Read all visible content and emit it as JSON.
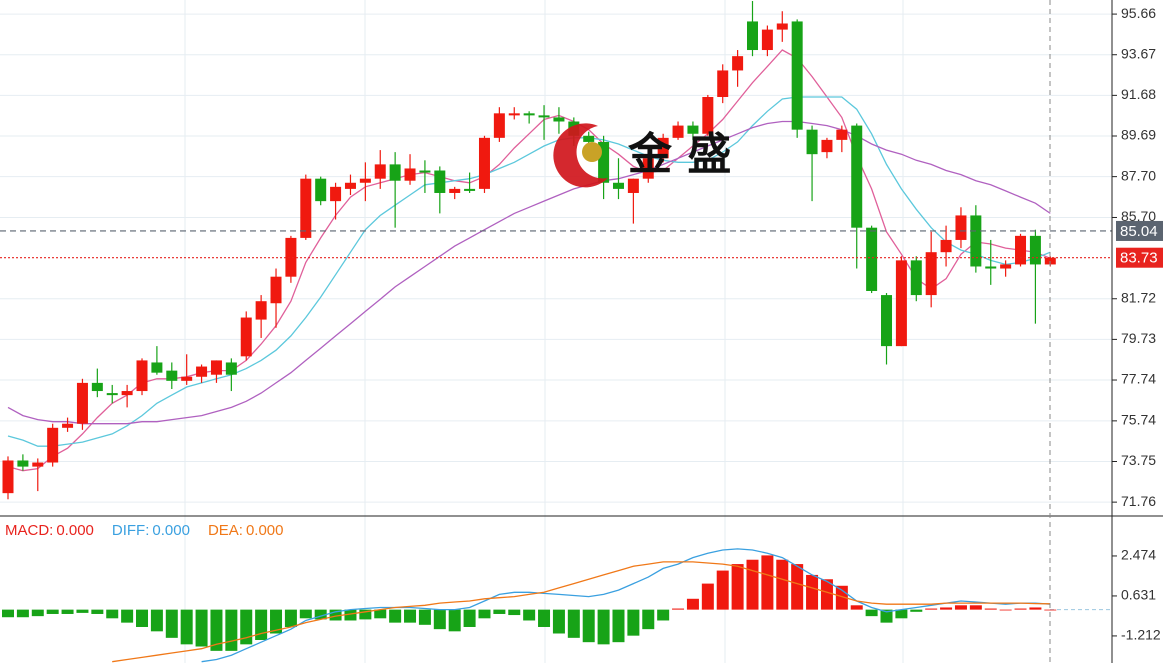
{
  "watermark": "金 盛",
  "chart_data": [
    {
      "type": "candlestick",
      "ylim": [
        71.13,
        96.35
      ],
      "yticks": [
        95.66,
        93.67,
        91.68,
        89.69,
        {
          "value": 87.7,
          "label": "87.70"
        },
        {
          "value": 85.7,
          "label": "85.70"
        },
        81.72,
        79.73,
        77.74,
        75.74,
        73.75,
        71.76
      ],
      "grid": true,
      "up_color": "#f0190f",
      "down_color": "#17a317",
      "ohlc": [
        [
          72.2,
          74.0,
          71.9,
          73.8
        ],
        [
          73.8,
          74.1,
          73.3,
          73.5
        ],
        [
          73.5,
          73.9,
          72.3,
          73.7
        ],
        [
          73.7,
          75.6,
          73.5,
          75.4
        ],
        [
          75.4,
          75.9,
          75.2,
          75.6
        ],
        [
          75.6,
          77.8,
          75.3,
          77.6
        ],
        [
          77.6,
          78.3,
          76.9,
          77.2
        ],
        [
          77.1,
          77.5,
          76.6,
          77.0
        ],
        [
          77.0,
          77.5,
          76.4,
          77.2
        ],
        [
          77.2,
          78.8,
          77.0,
          78.7
        ],
        [
          78.6,
          79.4,
          78.0,
          78.1
        ],
        [
          78.2,
          78.6,
          77.3,
          77.7
        ],
        [
          77.7,
          79.0,
          77.5,
          77.9
        ],
        [
          77.9,
          78.5,
          77.6,
          78.4
        ],
        [
          78.0,
          78.7,
          77.6,
          78.7
        ],
        [
          78.6,
          78.8,
          77.2,
          78.0
        ],
        [
          78.9,
          81.1,
          78.7,
          80.8
        ],
        [
          80.7,
          81.9,
          79.8,
          81.6
        ],
        [
          81.5,
          83.2,
          80.3,
          82.8
        ],
        [
          82.8,
          84.8,
          82.5,
          84.7
        ],
        [
          84.7,
          87.8,
          84.6,
          87.6
        ],
        [
          87.6,
          87.7,
          86.3,
          86.5
        ],
        [
          86.5,
          87.4,
          85.6,
          87.2
        ],
        [
          87.1,
          87.8,
          86.8,
          87.4
        ],
        [
          87.4,
          88.4,
          86.5,
          87.6
        ],
        [
          87.6,
          89.0,
          87.1,
          88.3
        ],
        [
          88.3,
          88.9,
          85.2,
          87.5
        ],
        [
          87.5,
          88.8,
          87.3,
          88.1
        ],
        [
          88.0,
          88.5,
          86.9,
          87.9
        ],
        [
          88.0,
          88.2,
          85.9,
          86.9
        ],
        [
          86.9,
          87.2,
          86.6,
          87.1
        ],
        [
          87.1,
          87.9,
          86.9,
          87.0
        ],
        [
          87.1,
          89.7,
          86.9,
          89.6
        ],
        [
          89.6,
          91.1,
          89.4,
          90.8
        ],
        [
          90.7,
          91.1,
          90.5,
          90.8
        ],
        [
          90.8,
          90.9,
          90.3,
          90.7
        ],
        [
          90.7,
          91.2,
          89.5,
          90.6
        ],
        [
          90.6,
          91.1,
          89.8,
          90.4
        ],
        [
          90.4,
          90.6,
          89.2,
          89.7
        ],
        [
          89.7,
          89.9,
          88.8,
          89.4
        ],
        [
          89.4,
          89.7,
          86.6,
          87.4
        ],
        [
          87.4,
          88.6,
          86.6,
          87.1
        ],
        [
          86.9,
          87.6,
          85.4,
          87.6
        ],
        [
          87.6,
          88.9,
          87.4,
          88.6
        ],
        [
          88.6,
          89.8,
          88.4,
          89.6
        ],
        [
          89.6,
          90.4,
          89.5,
          90.2
        ],
        [
          90.2,
          90.4,
          89.5,
          89.8
        ],
        [
          89.8,
          91.7,
          89.7,
          91.6
        ],
        [
          91.6,
          93.2,
          91.3,
          92.9
        ],
        [
          92.9,
          93.9,
          92.1,
          93.6
        ],
        [
          95.3,
          96.3,
          93.6,
          93.9
        ],
        [
          93.9,
          95.1,
          93.6,
          94.9
        ],
        [
          94.9,
          95.8,
          94.3,
          95.2
        ],
        [
          95.3,
          95.4,
          89.6,
          90.0
        ],
        [
          90.0,
          90.2,
          86.5,
          88.8
        ],
        [
          88.9,
          89.6,
          88.6,
          89.5
        ],
        [
          89.5,
          90.2,
          88.9,
          90.0
        ],
        [
          90.2,
          90.3,
          83.2,
          85.2
        ],
        [
          85.2,
          85.3,
          82.0,
          82.1
        ],
        [
          81.9,
          82.0,
          78.5,
          79.4
        ],
        [
          79.4,
          83.8,
          79.4,
          83.6
        ],
        [
          83.6,
          83.8,
          81.6,
          81.9
        ],
        [
          81.9,
          85.0,
          81.3,
          84.0
        ],
        [
          84.0,
          85.3,
          83.3,
          84.6
        ],
        [
          84.6,
          86.2,
          84.2,
          85.8
        ],
        [
          85.8,
          86.3,
          83.0,
          83.3
        ],
        [
          83.3,
          84.6,
          82.4,
          83.2
        ],
        [
          83.2,
          83.6,
          82.8,
          83.4
        ],
        [
          83.4,
          84.9,
          83.3,
          84.8
        ],
        [
          84.8,
          85.1,
          80.5,
          83.4
        ],
        [
          83.4,
          83.8,
          83.3,
          83.73
        ]
      ],
      "series": [
        {
          "color": "#e0609a",
          "values": [
            73.5,
            73.3,
            73.4,
            74.0,
            74.4,
            75.1,
            75.9,
            76.6,
            77.0,
            77.6,
            77.8,
            77.8,
            77.9,
            78.1,
            78.2,
            78.2,
            78.7,
            79.5,
            80.4,
            81.6,
            83.5,
            84.7,
            85.8,
            86.7,
            87.2,
            87.4,
            87.6,
            87.8,
            87.9,
            87.7,
            87.5,
            87.4,
            87.7,
            88.3,
            89.1,
            89.8,
            90.5,
            90.7,
            90.4,
            90.0,
            89.3,
            88.8,
            88.2,
            87.9,
            88.0,
            88.6,
            89.2,
            89.8,
            90.5,
            91.4,
            92.3,
            93.1,
            93.9,
            93.5,
            92.6,
            91.6,
            90.6,
            88.7,
            87.1,
            85.0,
            83.9,
            82.7,
            82.2,
            82.7,
            83.9,
            84.5,
            84.4,
            84.2,
            84.1,
            84.0,
            83.7
          ]
        },
        {
          "color": "#5cc8dc",
          "values": [
            75.0,
            74.8,
            74.5,
            74.5,
            74.6,
            74.7,
            74.9,
            75.1,
            75.5,
            76.0,
            76.6,
            77.0,
            77.4,
            77.6,
            77.8,
            78.0,
            78.3,
            78.7,
            79.2,
            79.9,
            80.8,
            81.8,
            82.9,
            84.0,
            85.1,
            85.8,
            86.3,
            86.8,
            87.3,
            87.4,
            87.5,
            87.6,
            87.8,
            88.1,
            88.4,
            88.8,
            89.2,
            89.5,
            89.6,
            89.6,
            89.5,
            89.3,
            89.0,
            88.7,
            88.5,
            88.4,
            88.4,
            88.5,
            88.9,
            89.4,
            90.2,
            90.9,
            91.5,
            91.6,
            91.6,
            91.6,
            91.6,
            91.0,
            89.8,
            88.3,
            87.1,
            86.1,
            85.2,
            84.5,
            84.1,
            83.9,
            83.6,
            83.4,
            83.5,
            83.7,
            84.0
          ]
        },
        {
          "color": "#b061c0",
          "values": [
            76.4,
            76.0,
            75.8,
            75.7,
            75.7,
            75.6,
            75.6,
            75.6,
            75.6,
            75.7,
            75.7,
            75.8,
            75.9,
            76.0,
            76.2,
            76.4,
            76.7,
            77.1,
            77.6,
            78.1,
            78.7,
            79.3,
            79.9,
            80.5,
            81.1,
            81.7,
            82.3,
            82.8,
            83.3,
            83.8,
            84.3,
            84.7,
            85.1,
            85.5,
            85.9,
            86.2,
            86.5,
            86.8,
            87.1,
            87.3,
            87.5,
            87.6,
            87.8,
            88.0,
            88.3,
            88.6,
            88.9,
            89.2,
            89.5,
            89.8,
            90.1,
            90.3,
            90.4,
            90.4,
            90.3,
            90.2,
            90.0,
            89.7,
            89.3,
            89.0,
            88.8,
            88.5,
            88.3,
            88.0,
            87.8,
            87.5,
            87.3,
            87.0,
            86.7,
            86.4,
            85.9
          ]
        }
      ],
      "price_lines": [
        {
          "value": 85.04,
          "color": "#5b6470"
        },
        {
          "value": 83.73,
          "color": "#e8231e"
        }
      ]
    },
    {
      "type": "macd",
      "ylim": [
        -2.46,
        4.27
      ],
      "yticks": [
        2.474,
        0.631,
        -1.212
      ],
      "legend": [
        {
          "label": "MACD:",
          "value": "0.000",
          "color": "#e8231e"
        },
        {
          "label": "DIFF:",
          "value": "0.000",
          "color": "#3aa0e0"
        },
        {
          "label": "DEA:",
          "value": "0.000",
          "color": "#f07818"
        }
      ],
      "up_color": "#f0190f",
      "down_color": "#17a317",
      "histogram": [
        -0.35,
        -0.35,
        -0.3,
        -0.2,
        -0.2,
        -0.15,
        -0.2,
        -0.4,
        -0.6,
        -0.8,
        -1.0,
        -1.3,
        -1.6,
        -1.7,
        -1.9,
        -1.9,
        -1.6,
        -1.4,
        -1.1,
        -0.8,
        -0.4,
        -0.45,
        -0.5,
        -0.5,
        -0.45,
        -0.4,
        -0.6,
        -0.6,
        -0.7,
        -0.9,
        -1.0,
        -0.8,
        -0.4,
        -0.2,
        -0.25,
        -0.5,
        -0.8,
        -1.1,
        -1.3,
        -1.5,
        -1.6,
        -1.5,
        -1.2,
        -0.9,
        -0.5,
        0.05,
        0.5,
        1.2,
        1.8,
        2.1,
        2.3,
        2.5,
        2.3,
        2.1,
        1.6,
        1.4,
        1.1,
        0.2,
        -0.3,
        -0.6,
        -0.4,
        -0.1,
        0.05,
        0.1,
        0.2,
        0.2,
        0.05,
        0.0,
        0.05,
        0.1,
        0.0
      ],
      "series": [
        {
          "color": "#3aa0e0",
          "values": [
            null,
            null,
            null,
            null,
            null,
            null,
            null,
            null,
            null,
            null,
            null,
            null,
            null,
            -2.4,
            -2.3,
            -2.1,
            -1.8,
            -1.5,
            -1.2,
            -0.9,
            -0.5,
            -0.3,
            -0.1,
            0.0,
            0.05,
            0.1,
            0.1,
            0.1,
            0.05,
            0.0,
            0.0,
            0.1,
            0.4,
            0.7,
            0.8,
            0.8,
            0.75,
            0.7,
            0.65,
            0.6,
            0.7,
            0.9,
            1.2,
            1.5,
            1.9,
            2.1,
            2.4,
            2.6,
            2.75,
            2.8,
            2.75,
            2.6,
            2.4,
            2.0,
            1.6,
            1.3,
            0.9,
            0.4,
            0.1,
            -0.1,
            0.0,
            0.1,
            0.2,
            0.3,
            0.4,
            0.35,
            0.3,
            0.25,
            0.3,
            0.3,
            0.25
          ]
        },
        {
          "color": "#f07818",
          "values": [
            null,
            null,
            null,
            null,
            null,
            null,
            null,
            -2.4,
            -2.3,
            -2.2,
            -2.1,
            -2.0,
            -1.9,
            -1.8,
            -1.6,
            -1.45,
            -1.3,
            -1.1,
            -0.95,
            -0.8,
            -0.6,
            -0.45,
            -0.3,
            -0.2,
            -0.1,
            0.0,
            0.1,
            0.15,
            0.2,
            0.3,
            0.35,
            0.4,
            0.5,
            0.55,
            0.6,
            0.7,
            0.8,
            1.0,
            1.2,
            1.4,
            1.6,
            1.8,
            2.0,
            2.1,
            2.2,
            2.2,
            2.2,
            2.15,
            2.1,
            2.0,
            1.8,
            1.6,
            1.4,
            1.2,
            1.0,
            0.8,
            0.6,
            0.4,
            0.3,
            0.25,
            0.25,
            0.25,
            0.25,
            0.3,
            0.3,
            0.3,
            0.3,
            0.3,
            0.3,
            0.28,
            0.27
          ]
        }
      ]
    }
  ]
}
